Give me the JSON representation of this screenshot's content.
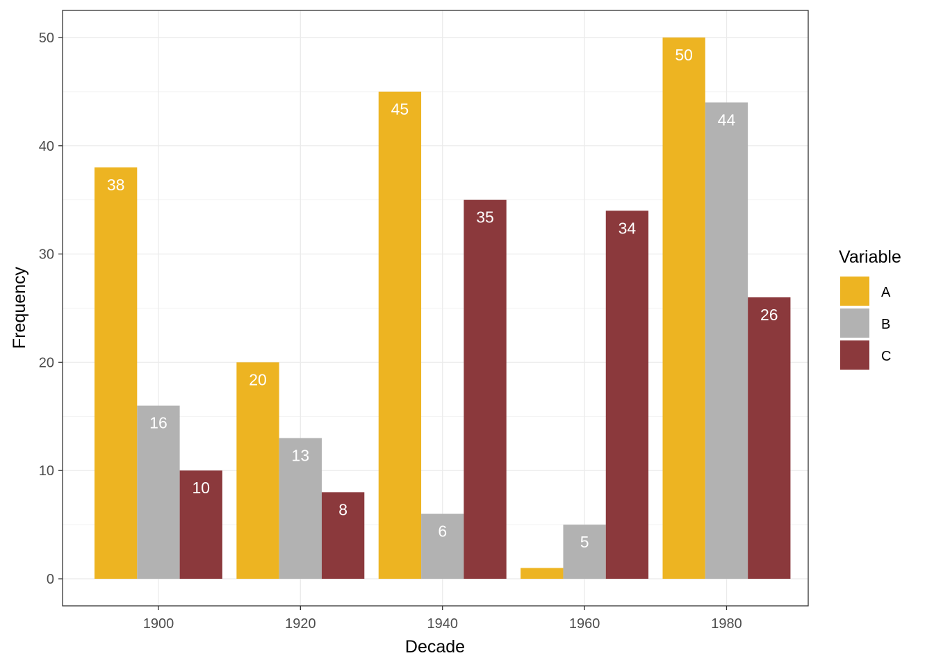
{
  "chart_data": {
    "type": "bar",
    "xlabel": "Decade",
    "ylabel": "Frequency",
    "categories": [
      "1900",
      "1920",
      "1940",
      "1960",
      "1980"
    ],
    "x_values": [
      1900,
      1920,
      1940,
      1960,
      1980
    ],
    "xlim": [
      1886.5,
      1991.5
    ],
    "ylim": [
      -2.5,
      52.5
    ],
    "y_ticks": [
      0,
      10,
      20,
      30,
      40,
      50
    ],
    "y_minor_ticks": [
      5,
      15,
      25,
      35,
      45
    ],
    "grid": true,
    "legend": {
      "title": "Variable",
      "position": "right"
    },
    "series": [
      {
        "name": "A",
        "color": "#EDB422",
        "values": [
          38,
          20,
          45,
          1,
          50
        ]
      },
      {
        "name": "B",
        "color": "#B2B2B2",
        "values": [
          16,
          13,
          6,
          5,
          44
        ]
      },
      {
        "name": "C",
        "color": "#8B393C",
        "values": [
          10,
          8,
          35,
          34,
          26
        ]
      }
    ]
  }
}
